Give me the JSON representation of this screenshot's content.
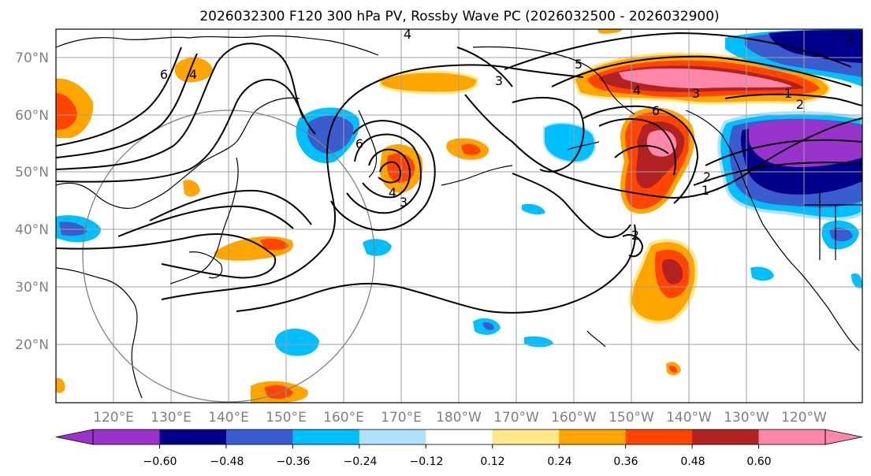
{
  "title": "2026032300 F120 300 hPa PV, Rossby Wave PC (2026032500 - 2026032900)",
  "lat_labels": [
    "70°N",
    "60°N",
    "50°N",
    "40°N",
    "30°N",
    "20°N"
  ],
  "lon_labels": [
    "120°E",
    "130°E",
    "140°E",
    "150°E",
    "160°E",
    "170°E",
    "180°W",
    "170°W",
    "160°W",
    "150°W",
    "140°W",
    "130°W",
    "120°W"
  ],
  "colorbar": {
    "colors": [
      "#9933cc",
      "#00008b",
      "#3b5ccf",
      "#00bfff",
      "#b0e2ff",
      "#ffffff",
      "#ffe88a",
      "#ffa500",
      "#ff4500",
      "#b22222",
      "#ff88aa"
    ],
    "tick_labels": [
      "−0.60",
      "−0.48",
      "−0.36",
      "−0.24",
      "−0.12",
      "0.12",
      "0.24",
      "0.36",
      "0.48",
      "0.60"
    ],
    "under_color": "#9933cc",
    "over_color": "#ff88aa"
  },
  "contour_labels": [
    "4",
    "6",
    "4",
    "6",
    "5",
    "3",
    "4",
    "3",
    "1",
    "2",
    "6",
    "2",
    "1",
    "4",
    "3",
    "2",
    "2"
  ]
}
